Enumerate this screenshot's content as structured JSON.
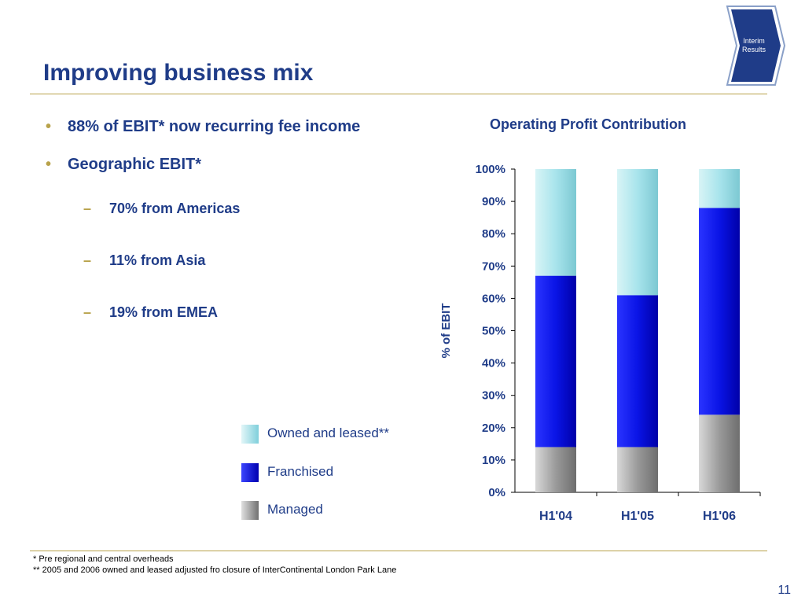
{
  "slide": {
    "title": "Improving business mix",
    "badge_line1": "Interim",
    "badge_line2": "Results",
    "page_number": "11"
  },
  "bullets": [
    {
      "text": "88% of EBIT* now recurring fee income"
    },
    {
      "text": "Geographic EBIT*"
    }
  ],
  "sub_bullets": [
    {
      "text": "70% from Americas"
    },
    {
      "text": "11% from Asia"
    },
    {
      "text": "19% from EMEA"
    }
  ],
  "legend": [
    {
      "label": "Owned and leased**",
      "color": "#a8e4ec"
    },
    {
      "label": "Franchised",
      "color": "#0a14e6"
    },
    {
      "label": "Managed",
      "color": "#a0a0a0"
    }
  ],
  "footnotes": [
    "* Pre regional and central overheads",
    "** 2005 and 2006 owned and leased adjusted fro closure of InterContinental London Park Lane"
  ],
  "colors": {
    "title": "#1f3c88",
    "accent_rule": "#b8a24a",
    "owned_leased": "#a8e4ec",
    "franchised": "#0a14e6",
    "managed": "#a0a0a0"
  },
  "chart_data": {
    "type": "bar",
    "stacked": true,
    "title": "Operating Profit Contribution",
    "ylabel": "% of EBIT",
    "xlabel": "",
    "ylim": [
      0,
      100
    ],
    "yticks": [
      "0%",
      "10%",
      "20%",
      "30%",
      "40%",
      "50%",
      "60%",
      "70%",
      "80%",
      "90%",
      "100%"
    ],
    "categories": [
      "H1'04",
      "H1'05",
      "H1'06"
    ],
    "series": [
      {
        "name": "Managed",
        "color": "#a0a0a0",
        "values": [
          14,
          14,
          24
        ]
      },
      {
        "name": "Franchised",
        "color": "#0a14e6",
        "values": [
          53,
          47,
          64
        ]
      },
      {
        "name": "Owned and leased**",
        "color": "#a8e4ec",
        "values": [
          33,
          39,
          12
        ]
      }
    ],
    "grid": false,
    "legend_position": "left"
  }
}
